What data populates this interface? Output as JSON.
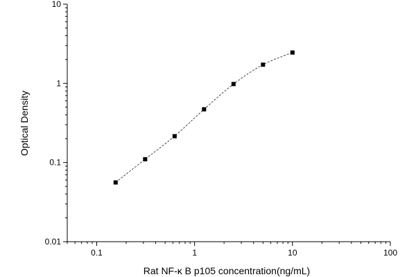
{
  "chart_data": {
    "type": "scatter",
    "title": "",
    "xlabel": "Rat NF-κ B p105 concentration(ng/mL)",
    "ylabel": "Optical Density",
    "x_scale": "log",
    "y_scale": "log",
    "xlim": [
      0.05,
      100
    ],
    "ylim": [
      0.01,
      10
    ],
    "x_tick_labels": [
      "0.1",
      "1",
      "10",
      "100"
    ],
    "y_tick_labels": [
      "0.01",
      "0.1",
      "1",
      "10"
    ],
    "grid": false,
    "legend": "none",
    "fit_line": "dashed smooth curve through points",
    "series": [
      {
        "x": [
          0.156,
          0.3125,
          0.625,
          1.25,
          2.5,
          5,
          10
        ],
        "y": [
          0.056,
          0.11,
          0.215,
          0.47,
          0.98,
          1.72,
          2.45
        ]
      }
    ],
    "colors": {
      "axis": "#000000",
      "marker": "#000000",
      "curve": "#333333"
    }
  }
}
